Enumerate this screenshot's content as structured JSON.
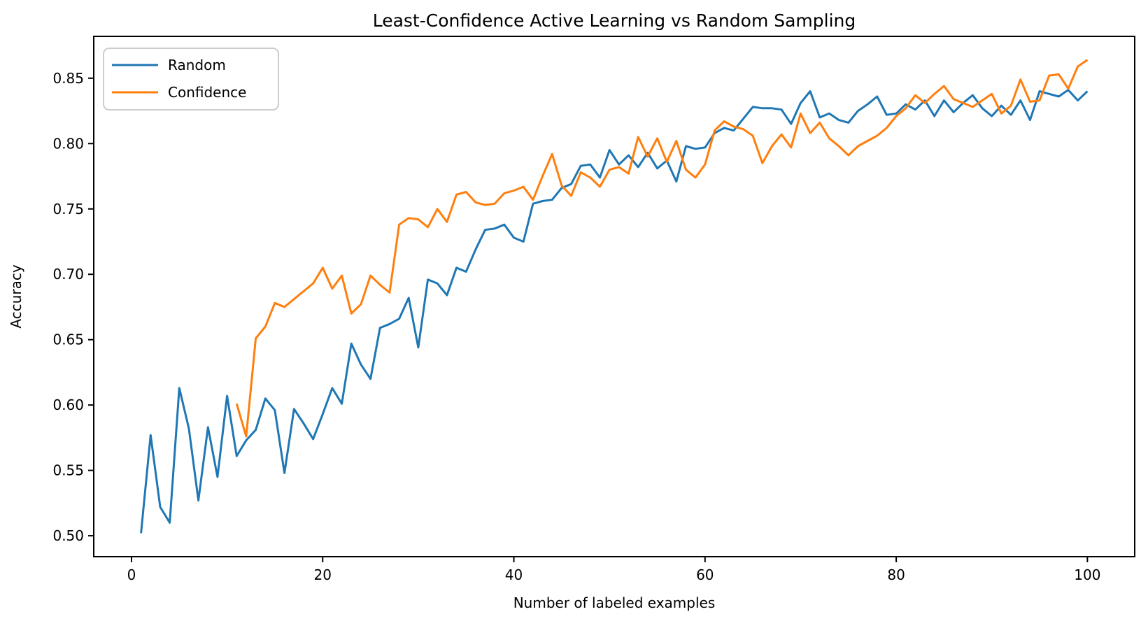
{
  "figure": {
    "title": "Least-Confidence Active Learning vs Random Sampling",
    "xlabel": "Number of labeled examples",
    "ylabel": "Accuracy",
    "background_color": "#ffffff",
    "frame_color": "#000000",
    "text_color": "#000000"
  },
  "legend": {
    "position": "upper left",
    "items": [
      {
        "label": "Random",
        "color": "#1f77b4"
      },
      {
        "label": "Confidence",
        "color": "#ff7f0e"
      }
    ]
  },
  "chart_data": {
    "type": "line",
    "title": "Least-Confidence Active Learning vs Random Sampling",
    "xlabel": "Number of labeled examples",
    "ylabel": "Accuracy",
    "grid": false,
    "legend_position": "upper left",
    "xlim": [
      -3.95,
      104.95
    ],
    "ylim": [
      0.484,
      0.882
    ],
    "x_ticks": [
      0,
      20,
      40,
      60,
      80,
      100
    ],
    "x_tick_labels": [
      "0",
      "20",
      "40",
      "60",
      "80",
      "100"
    ],
    "y_ticks": [
      0.5,
      0.55,
      0.6,
      0.65,
      0.7,
      0.75,
      0.8,
      0.85
    ],
    "y_tick_labels": [
      "0.50",
      "0.55",
      "0.60",
      "0.65",
      "0.70",
      "0.75",
      "0.80",
      "0.85"
    ],
    "series": [
      {
        "name": "Random",
        "color": "#1f77b4",
        "x_start": 1,
        "x_step": 1,
        "values": [
          0.502,
          0.577,
          0.522,
          0.51,
          0.613,
          0.582,
          0.527,
          0.583,
          0.545,
          0.607,
          0.561,
          0.573,
          0.581,
          0.605,
          0.596,
          0.548,
          0.597,
          0.586,
          0.574,
          0.593,
          0.613,
          0.601,
          0.647,
          0.631,
          0.62,
          0.659,
          0.662,
          0.666,
          0.682,
          0.644,
          0.696,
          0.693,
          0.684,
          0.705,
          0.702,
          0.719,
          0.734,
          0.735,
          0.738,
          0.728,
          0.725,
          0.754,
          0.756,
          0.757,
          0.766,
          0.769,
          0.783,
          0.784,
          0.774,
          0.795,
          0.784,
          0.791,
          0.782,
          0.793,
          0.781,
          0.787,
          0.771,
          0.798,
          0.796,
          0.797,
          0.808,
          0.812,
          0.81,
          0.819,
          0.828,
          0.827,
          0.827,
          0.826,
          0.815,
          0.831,
          0.84,
          0.82,
          0.823,
          0.818,
          0.816,
          0.825,
          0.83,
          0.836,
          0.822,
          0.823,
          0.83,
          0.826,
          0.833,
          0.821,
          0.833,
          0.824,
          0.831,
          0.837,
          0.827,
          0.821,
          0.829,
          0.822,
          0.833,
          0.818,
          0.84,
          0.838,
          0.836,
          0.841,
          0.833,
          0.84
        ]
      },
      {
        "name": "Confidence",
        "color": "#ff7f0e",
        "x_start": 11,
        "x_step": 1,
        "values": [
          0.601,
          0.576,
          0.651,
          0.66,
          0.678,
          0.675,
          0.681,
          0.687,
          0.693,
          0.705,
          0.689,
          0.699,
          0.67,
          0.677,
          0.699,
          0.692,
          0.686,
          0.738,
          0.743,
          0.742,
          0.736,
          0.75,
          0.74,
          0.761,
          0.763,
          0.755,
          0.753,
          0.754,
          0.762,
          0.764,
          0.767,
          0.757,
          0.775,
          0.792,
          0.768,
          0.76,
          0.778,
          0.774,
          0.767,
          0.78,
          0.782,
          0.777,
          0.805,
          0.79,
          0.804,
          0.786,
          0.802,
          0.78,
          0.774,
          0.784,
          0.81,
          0.817,
          0.813,
          0.811,
          0.806,
          0.785,
          0.798,
          0.807,
          0.797,
          0.823,
          0.808,
          0.816,
          0.804,
          0.798,
          0.791,
          0.798,
          0.802,
          0.806,
          0.812,
          0.821,
          0.827,
          0.837,
          0.831,
          0.838,
          0.844,
          0.834,
          0.831,
          0.828,
          0.833,
          0.838,
          0.823,
          0.829,
          0.849,
          0.832,
          0.833,
          0.852,
          0.853,
          0.842,
          0.859,
          0.864
        ]
      }
    ]
  }
}
